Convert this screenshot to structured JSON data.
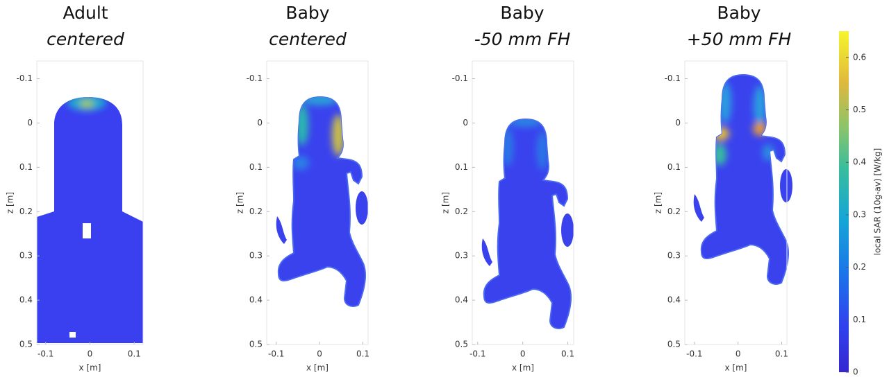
{
  "chart_data": [
    {
      "type": "heatmap",
      "title": "Adult",
      "subtitle": "centered",
      "xlabel": "x [m]",
      "ylabel": "z [m]",
      "xlim": [
        -0.12,
        0.12
      ],
      "ylim": [
        -0.14,
        0.5
      ],
      "xticks": [
        -0.1,
        0,
        0.1
      ],
      "yticks": [
        -0.1,
        0,
        0.1,
        0.2,
        0.3,
        0.4,
        0.5
      ],
      "y_reversed": true
    },
    {
      "type": "heatmap",
      "title": "Baby",
      "subtitle": "centered",
      "xlabel": "x [m]",
      "ylabel": "z [m]",
      "xlim": [
        -0.122,
        0.112
      ],
      "ylim": [
        -0.14,
        0.5
      ],
      "xticks": [
        -0.1,
        0,
        0.1
      ],
      "yticks": [
        -0.1,
        0,
        0.1,
        0.2,
        0.3,
        0.4,
        0.5
      ],
      "y_reversed": true
    },
    {
      "type": "heatmap",
      "title": "Baby",
      "subtitle": "-50 mm FH",
      "xlabel": "x [m]",
      "ylabel": "z [m]",
      "xlim": [
        -0.112,
        0.113
      ],
      "ylim": [
        -0.14,
        0.5
      ],
      "xticks": [
        -0.1,
        0,
        0.1
      ],
      "yticks": [
        -0.1,
        0,
        0.1,
        0.2,
        0.3,
        0.4,
        0.5
      ],
      "y_reversed": true
    },
    {
      "type": "heatmap",
      "title": "Baby",
      "subtitle": "+50 mm FH",
      "xlabel": "x [m]",
      "ylabel": "z [m]",
      "xlim": [
        -0.122,
        0.112
      ],
      "ylim": [
        -0.14,
        0.5
      ],
      "xticks": [
        -0.1,
        0,
        0.1
      ],
      "yticks": [
        -0.1,
        0,
        0.1,
        0.2,
        0.3,
        0.4,
        0.5
      ],
      "y_reversed": true
    }
  ],
  "colorbar": {
    "label": "local SAR (10g-av) [W/kg]",
    "lim": [
      0,
      0.65
    ],
    "ticks": [
      0,
      0.1,
      0.2,
      0.3,
      0.4,
      0.5,
      0.6
    ]
  }
}
